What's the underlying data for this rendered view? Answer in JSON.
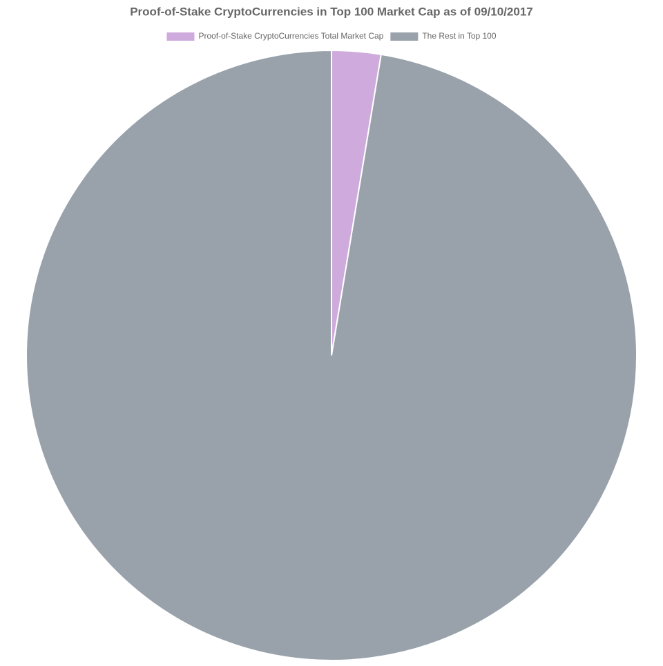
{
  "chart_data": {
    "type": "pie",
    "title": "Proof-of-Stake CryptoCurrencies in Top 100 Market Cap as of 09/10/2017",
    "categories": [
      "Proof-of-Stake CryptoCurrencies Total Market Cap",
      "The Rest in Top 100"
    ],
    "values": [
      2.6,
      97.4
    ],
    "colors": [
      "#cfaadc",
      "#99a2ab"
    ],
    "legend": "top"
  }
}
